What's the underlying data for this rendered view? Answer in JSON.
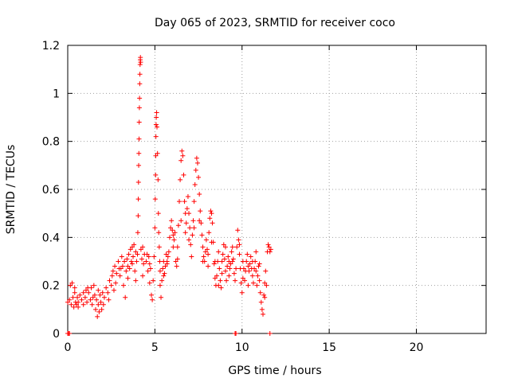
{
  "chart_data": {
    "type": "scatter",
    "title": "Day 065 of 2023, SRMTID for receiver coco",
    "xlabel": "GPS time / hours",
    "ylabel": "SRMTID / TECUs",
    "xlim": [
      0,
      24
    ],
    "ylim": [
      0,
      1.2
    ],
    "x_ticks": [
      0,
      5,
      10,
      15,
      20
    ],
    "x_tick_labels": [
      "0",
      "5",
      "10",
      "15",
      "20"
    ],
    "y_ticks": [
      0,
      0.2,
      0.4,
      0.6,
      0.8,
      1.0,
      1.2
    ],
    "y_tick_labels": [
      "0",
      "0.2",
      "0.4",
      "0.6",
      "0.8",
      "1",
      "1.2"
    ],
    "grid": true,
    "marker": "plus",
    "color": "#ff0000",
    "series": [
      {
        "name": "SRMTID",
        "points": [
          [
            0.0,
            0.0
          ],
          [
            0.05,
            0.0
          ],
          [
            0.1,
            0.0
          ],
          [
            9.6,
            0.0
          ],
          [
            9.65,
            0.0
          ],
          [
            11.6,
            0.0
          ],
          [
            0.0,
            0.13
          ],
          [
            0.1,
            0.14
          ],
          [
            0.15,
            0.2
          ],
          [
            0.2,
            0.12
          ],
          [
            0.25,
            0.21
          ],
          [
            0.3,
            0.15
          ],
          [
            0.35,
            0.11
          ],
          [
            0.4,
            0.17
          ],
          [
            0.45,
            0.13
          ],
          [
            0.5,
            0.12
          ],
          [
            0.55,
            0.15
          ],
          [
            0.6,
            0.13
          ],
          [
            0.7,
            0.16
          ],
          [
            0.8,
            0.14
          ],
          [
            0.9,
            0.17
          ],
          [
            1.0,
            0.15
          ],
          [
            1.05,
            0.18
          ],
          [
            1.1,
            0.13
          ],
          [
            1.2,
            0.17
          ],
          [
            1.3,
            0.14
          ],
          [
            1.35,
            0.19
          ],
          [
            1.4,
            0.12
          ],
          [
            1.5,
            0.2
          ],
          [
            1.55,
            0.16
          ],
          [
            1.6,
            0.1
          ],
          [
            1.65,
            0.14
          ],
          [
            1.7,
            0.07
          ],
          [
            1.75,
            0.12
          ],
          [
            1.8,
            0.09
          ],
          [
            1.85,
            0.16
          ],
          [
            1.9,
            0.13
          ],
          [
            1.95,
            0.1
          ],
          [
            2.0,
            0.17
          ],
          [
            2.1,
            0.15
          ],
          [
            2.2,
            0.19
          ],
          [
            2.3,
            0.17
          ],
          [
            2.4,
            0.22
          ],
          [
            2.5,
            0.2
          ],
          [
            2.6,
            0.26
          ],
          [
            2.65,
            0.18
          ],
          [
            2.7,
            0.28
          ],
          [
            2.8,
            0.25
          ],
          [
            2.9,
            0.3
          ],
          [
            3.0,
            0.24
          ],
          [
            3.05,
            0.27
          ],
          [
            3.1,
            0.32
          ],
          [
            3.2,
            0.2
          ],
          [
            3.25,
            0.3
          ],
          [
            3.3,
            0.15
          ],
          [
            3.35,
            0.26
          ],
          [
            3.4,
            0.31
          ],
          [
            3.45,
            0.28
          ],
          [
            3.5,
            0.33
          ],
          [
            3.55,
            0.27
          ],
          [
            3.6,
            0.35
          ],
          [
            3.65,
            0.3
          ],
          [
            3.7,
            0.36
          ],
          [
            3.75,
            0.32
          ],
          [
            3.8,
            0.37
          ],
          [
            3.85,
            0.26
          ],
          [
            3.9,
            0.22
          ],
          [
            3.95,
            0.3
          ],
          [
            4.0,
            0.33
          ],
          [
            4.02,
            0.42
          ],
          [
            4.04,
            0.49
          ],
          [
            4.05,
            0.56
          ],
          [
            4.06,
            0.63
          ],
          [
            4.07,
            0.7
          ],
          [
            4.08,
            0.75
          ],
          [
            4.09,
            0.81
          ],
          [
            4.1,
            0.88
          ],
          [
            4.11,
            0.94
          ],
          [
            4.12,
            0.98
          ],
          [
            4.13,
            1.04
          ],
          [
            4.14,
            1.08
          ],
          [
            4.15,
            1.12
          ],
          [
            4.16,
            1.14
          ],
          [
            4.17,
            1.15
          ],
          [
            4.18,
            1.13
          ],
          [
            4.2,
            0.35
          ],
          [
            4.25,
            0.31
          ],
          [
            4.3,
            0.36
          ],
          [
            4.35,
            0.29
          ],
          [
            4.4,
            0.33
          ],
          [
            4.5,
            0.3
          ],
          [
            4.6,
            0.26
          ],
          [
            4.65,
            0.32
          ],
          [
            4.7,
            0.21
          ],
          [
            4.75,
            0.27
          ],
          [
            4.8,
            0.16
          ],
          [
            4.85,
            0.14
          ],
          [
            4.9,
            0.22
          ],
          [
            4.95,
            0.32
          ],
          [
            5.0,
            0.44
          ],
          [
            5.02,
            0.56
          ],
          [
            5.04,
            0.66
          ],
          [
            5.05,
            0.74
          ],
          [
            5.06,
            0.82
          ],
          [
            5.07,
            0.87
          ],
          [
            5.08,
            0.9
          ],
          [
            5.1,
            0.92
          ],
          [
            5.12,
            0.86
          ],
          [
            5.15,
            0.75
          ],
          [
            5.18,
            0.64
          ],
          [
            5.2,
            0.5
          ],
          [
            5.22,
            0.42
          ],
          [
            5.25,
            0.36
          ],
          [
            5.28,
            0.3
          ],
          [
            5.3,
            0.2
          ],
          [
            5.35,
            0.15
          ],
          [
            5.4,
            0.22
          ],
          [
            5.45,
            0.27
          ],
          [
            5.5,
            0.3
          ],
          [
            5.55,
            0.25
          ],
          [
            5.6,
            0.28
          ],
          [
            5.65,
            0.33
          ],
          [
            5.7,
            0.29
          ],
          [
            5.75,
            0.32
          ],
          [
            5.8,
            0.34
          ],
          [
            5.85,
            0.4
          ],
          [
            5.9,
            0.44
          ],
          [
            5.95,
            0.47
          ],
          [
            6.0,
            0.43
          ],
          [
            6.05,
            0.41
          ],
          [
            6.1,
            0.39
          ],
          [
            6.15,
            0.42
          ],
          [
            6.2,
            0.3
          ],
          [
            6.25,
            0.28
          ],
          [
            6.3,
            0.36
          ],
          [
            6.35,
            0.45
          ],
          [
            6.4,
            0.55
          ],
          [
            6.45,
            0.64
          ],
          [
            6.5,
            0.72
          ],
          [
            6.55,
            0.76
          ],
          [
            6.6,
            0.74
          ],
          [
            6.65,
            0.66
          ],
          [
            6.7,
            0.55
          ],
          [
            6.75,
            0.5
          ],
          [
            6.8,
            0.46
          ],
          [
            6.85,
            0.52
          ],
          [
            6.9,
            0.57
          ],
          [
            6.95,
            0.5
          ],
          [
            7.0,
            0.44
          ],
          [
            7.05,
            0.37
          ],
          [
            7.1,
            0.32
          ],
          [
            7.15,
            0.41
          ],
          [
            7.2,
            0.47
          ],
          [
            7.25,
            0.55
          ],
          [
            7.3,
            0.62
          ],
          [
            7.35,
            0.68
          ],
          [
            7.4,
            0.73
          ],
          [
            7.45,
            0.71
          ],
          [
            7.5,
            0.65
          ],
          [
            7.55,
            0.58
          ],
          [
            7.6,
            0.51
          ],
          [
            7.65,
            0.46
          ],
          [
            7.7,
            0.41
          ],
          [
            7.75,
            0.36
          ],
          [
            7.8,
            0.32
          ],
          [
            7.85,
            0.3
          ],
          [
            7.9,
            0.34
          ],
          [
            7.95,
            0.39
          ],
          [
            8.0,
            0.35
          ],
          [
            8.05,
            0.33
          ],
          [
            8.1,
            0.42
          ],
          [
            8.15,
            0.48
          ],
          [
            8.2,
            0.51
          ],
          [
            8.25,
            0.5
          ],
          [
            8.3,
            0.46
          ],
          [
            8.35,
            0.38
          ],
          [
            8.4,
            0.29
          ],
          [
            8.45,
            0.23
          ],
          [
            8.5,
            0.2
          ],
          [
            8.55,
            0.24
          ],
          [
            8.6,
            0.3
          ],
          [
            8.65,
            0.34
          ],
          [
            8.7,
            0.27
          ],
          [
            8.75,
            0.22
          ],
          [
            8.8,
            0.19
          ],
          [
            8.85,
            0.25
          ],
          [
            8.9,
            0.33
          ],
          [
            8.95,
            0.37
          ],
          [
            9.0,
            0.31
          ],
          [
            9.05,
            0.26
          ],
          [
            9.1,
            0.22
          ],
          [
            9.15,
            0.28
          ],
          [
            9.2,
            0.32
          ],
          [
            9.25,
            0.3
          ],
          [
            9.3,
            0.27
          ],
          [
            9.35,
            0.29
          ],
          [
            9.4,
            0.34
          ],
          [
            9.45,
            0.36
          ],
          [
            9.5,
            0.31
          ],
          [
            9.55,
            0.25
          ],
          [
            9.6,
            0.22
          ],
          [
            9.65,
            0.27
          ],
          [
            9.7,
            0.36
          ],
          [
            9.75,
            0.43
          ],
          [
            9.8,
            0.39
          ],
          [
            9.85,
            0.33
          ],
          [
            9.9,
            0.27
          ],
          [
            9.95,
            0.21
          ],
          [
            10.0,
            0.17
          ],
          [
            10.05,
            0.23
          ],
          [
            10.1,
            0.27
          ],
          [
            10.15,
            0.22
          ],
          [
            10.2,
            0.26
          ],
          [
            10.25,
            0.3
          ],
          [
            10.3,
            0.33
          ],
          [
            10.35,
            0.28
          ],
          [
            10.4,
            0.26
          ],
          [
            10.45,
            0.29
          ],
          [
            10.5,
            0.32
          ],
          [
            10.55,
            0.27
          ],
          [
            10.6,
            0.24
          ],
          [
            10.65,
            0.21
          ],
          [
            10.7,
            0.27
          ],
          [
            10.75,
            0.3
          ],
          [
            10.8,
            0.26
          ],
          [
            10.85,
            0.2
          ],
          [
            10.9,
            0.24
          ],
          [
            10.95,
            0.28
          ],
          [
            11.0,
            0.22
          ],
          [
            11.05,
            0.17
          ],
          [
            11.1,
            0.13
          ],
          [
            11.15,
            0.1
          ],
          [
            11.2,
            0.08
          ],
          [
            11.25,
            0.16
          ],
          [
            11.3,
            0.21
          ],
          [
            11.35,
            0.26
          ],
          [
            11.4,
            0.2
          ],
          [
            11.45,
            0.34
          ],
          [
            11.5,
            0.37
          ],
          [
            11.55,
            0.36
          ],
          [
            11.6,
            0.34
          ],
          [
            11.65,
            0.35
          ],
          [
            0.4,
            0.19
          ],
          [
            0.6,
            0.11
          ],
          [
            0.9,
            0.12
          ],
          [
            1.15,
            0.19
          ],
          [
            1.45,
            0.15
          ],
          [
            1.75,
            0.18
          ],
          [
            2.05,
            0.12
          ],
          [
            2.35,
            0.14
          ],
          [
            2.55,
            0.24
          ],
          [
            2.75,
            0.21
          ],
          [
            2.95,
            0.27
          ],
          [
            3.15,
            0.28
          ],
          [
            3.45,
            0.23
          ],
          [
            3.7,
            0.29
          ],
          [
            3.9,
            0.34
          ],
          [
            4.3,
            0.24
          ],
          [
            4.55,
            0.33
          ],
          [
            4.7,
            0.29
          ],
          [
            5.3,
            0.26
          ],
          [
            5.5,
            0.24
          ],
          [
            5.7,
            0.3
          ],
          [
            6.05,
            0.36
          ],
          [
            6.3,
            0.31
          ],
          [
            6.5,
            0.47
          ],
          [
            6.75,
            0.42
          ],
          [
            6.95,
            0.39
          ],
          [
            7.25,
            0.44
          ],
          [
            7.55,
            0.47
          ],
          [
            7.75,
            0.3
          ],
          [
            8.05,
            0.28
          ],
          [
            8.25,
            0.38
          ],
          [
            8.45,
            0.3
          ],
          [
            8.65,
            0.2
          ],
          [
            8.85,
            0.3
          ],
          [
            9.05,
            0.36
          ],
          [
            9.25,
            0.24
          ],
          [
            9.45,
            0.3
          ],
          [
            9.85,
            0.37
          ],
          [
            10.05,
            0.3
          ],
          [
            10.35,
            0.2
          ],
          [
            10.6,
            0.3
          ],
          [
            10.8,
            0.34
          ],
          [
            11.0,
            0.29
          ],
          [
            11.3,
            0.15
          ]
        ]
      }
    ]
  }
}
